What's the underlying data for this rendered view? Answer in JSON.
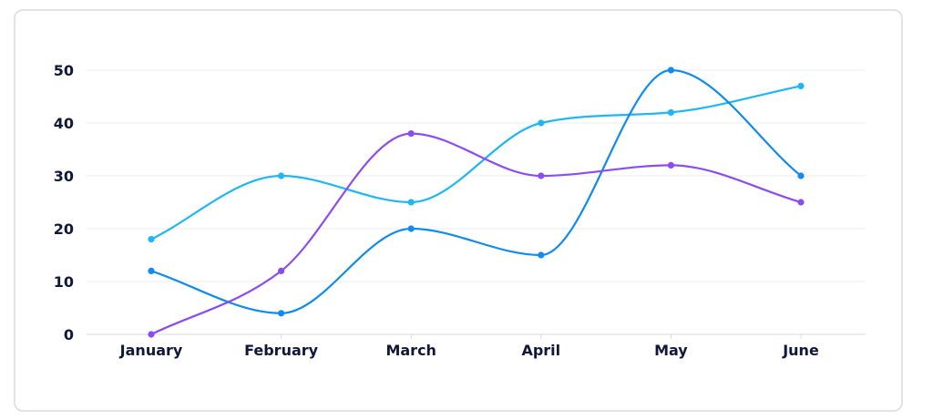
{
  "chart_data": {
    "type": "line",
    "title": "",
    "xlabel": "",
    "ylabel": "",
    "categories": [
      "January",
      "February",
      "March",
      "April",
      "May",
      "June"
    ],
    "y_ticks": [
      "0",
      "10",
      "20",
      "30",
      "40",
      "50"
    ],
    "ylim": [
      0,
      50
    ],
    "grid": true,
    "legend": "none",
    "curve": "smooth",
    "series": [
      {
        "values": [
          18,
          30,
          25,
          40,
          42,
          47
        ],
        "color": "#1fb6f4"
      },
      {
        "values": [
          12,
          4,
          20,
          15,
          50,
          30
        ],
        "color": "#118bed"
      },
      {
        "values": [
          0,
          12,
          38,
          30,
          32,
          25
        ],
        "color": "#8b4cf0"
      }
    ]
  }
}
